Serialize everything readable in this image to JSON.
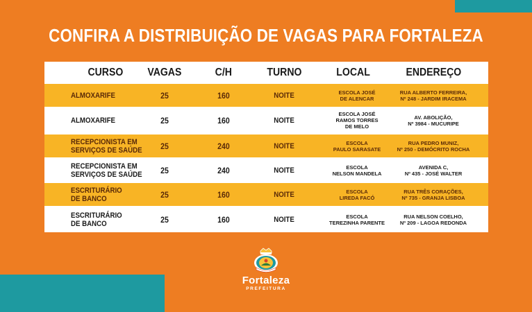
{
  "page": {
    "title": "CONFIRA A DISTRIBUIÇÃO DE VAGAS PARA FORTALEZA",
    "colors": {
      "background": "#ee7d22",
      "accent": "#1e9aa0",
      "row_highlight": "#f8b425",
      "row_plain": "#ffffff"
    }
  },
  "table": {
    "headers": [
      "CURSO",
      "VAGAS",
      "C/H",
      "TURNO",
      "LOCAL",
      "ENDEREÇO"
    ],
    "rows": [
      {
        "curso": "ALMOXARIFE",
        "vagas": "25",
        "ch": "160",
        "turno": "NOITE",
        "local": "ESCOLA JOSÉ\nDE ALENCAR",
        "endereco": "RUA ALBERTO FERREIRA,\nNº 248 - JARDIM IRACEMA",
        "style": "yellow"
      },
      {
        "curso": "ALMOXARIFE",
        "vagas": "25",
        "ch": "160",
        "turno": "NOITE",
        "local": "ESCOLA JOSÉ\nRAMOS TORRES\nDE MELO",
        "endereco": "AV. ABOLIÇÃO,\nNº 3984 - MUCURIPE",
        "style": "white"
      },
      {
        "curso": "RECEPCIONISTA EM\nSERVIÇOS DE SAÚDE",
        "vagas": "25",
        "ch": "240",
        "turno": "NOITE",
        "local": "ESCOLA\nPAULO SARASATE",
        "endereco": "RUA PEDRO MUNIZ,\nNº 250 - DEMÓCRITO ROCHA",
        "style": "yellow"
      },
      {
        "curso": "RECEPCIONISTA EM\nSERVIÇOS DE SAÚDE",
        "vagas": "25",
        "ch": "240",
        "turno": "NOITE",
        "local": "ESCOLA\nNELSON MANDELA",
        "endereco": "AVENIDA C,\nNº 435 - JOSÉ WALTER",
        "style": "white"
      },
      {
        "curso": "ESCRITURÁRIO\nDE BANCO",
        "vagas": "25",
        "ch": "160",
        "turno": "NOITE",
        "local": "ESCOLA\nLIREDA FACÓ",
        "endereco": "RUA TRÊS CORAÇÕES,\nNº 735 - GRANJA LISBOA",
        "style": "yellow"
      },
      {
        "curso": "ESCRITURÁRIO\nDE BANCO",
        "vagas": "25",
        "ch": "160",
        "turno": "NOITE",
        "local": "ESCOLA\nTEREZINHA PARENTE",
        "endereco": "RUA NELSON COELHO,\nNº 209 - LAGOA REDONDA",
        "style": "white"
      }
    ]
  },
  "logo": {
    "name": "Fortaleza",
    "subtitle": "PREFEITURA",
    "icon": "city-crest-icon"
  }
}
